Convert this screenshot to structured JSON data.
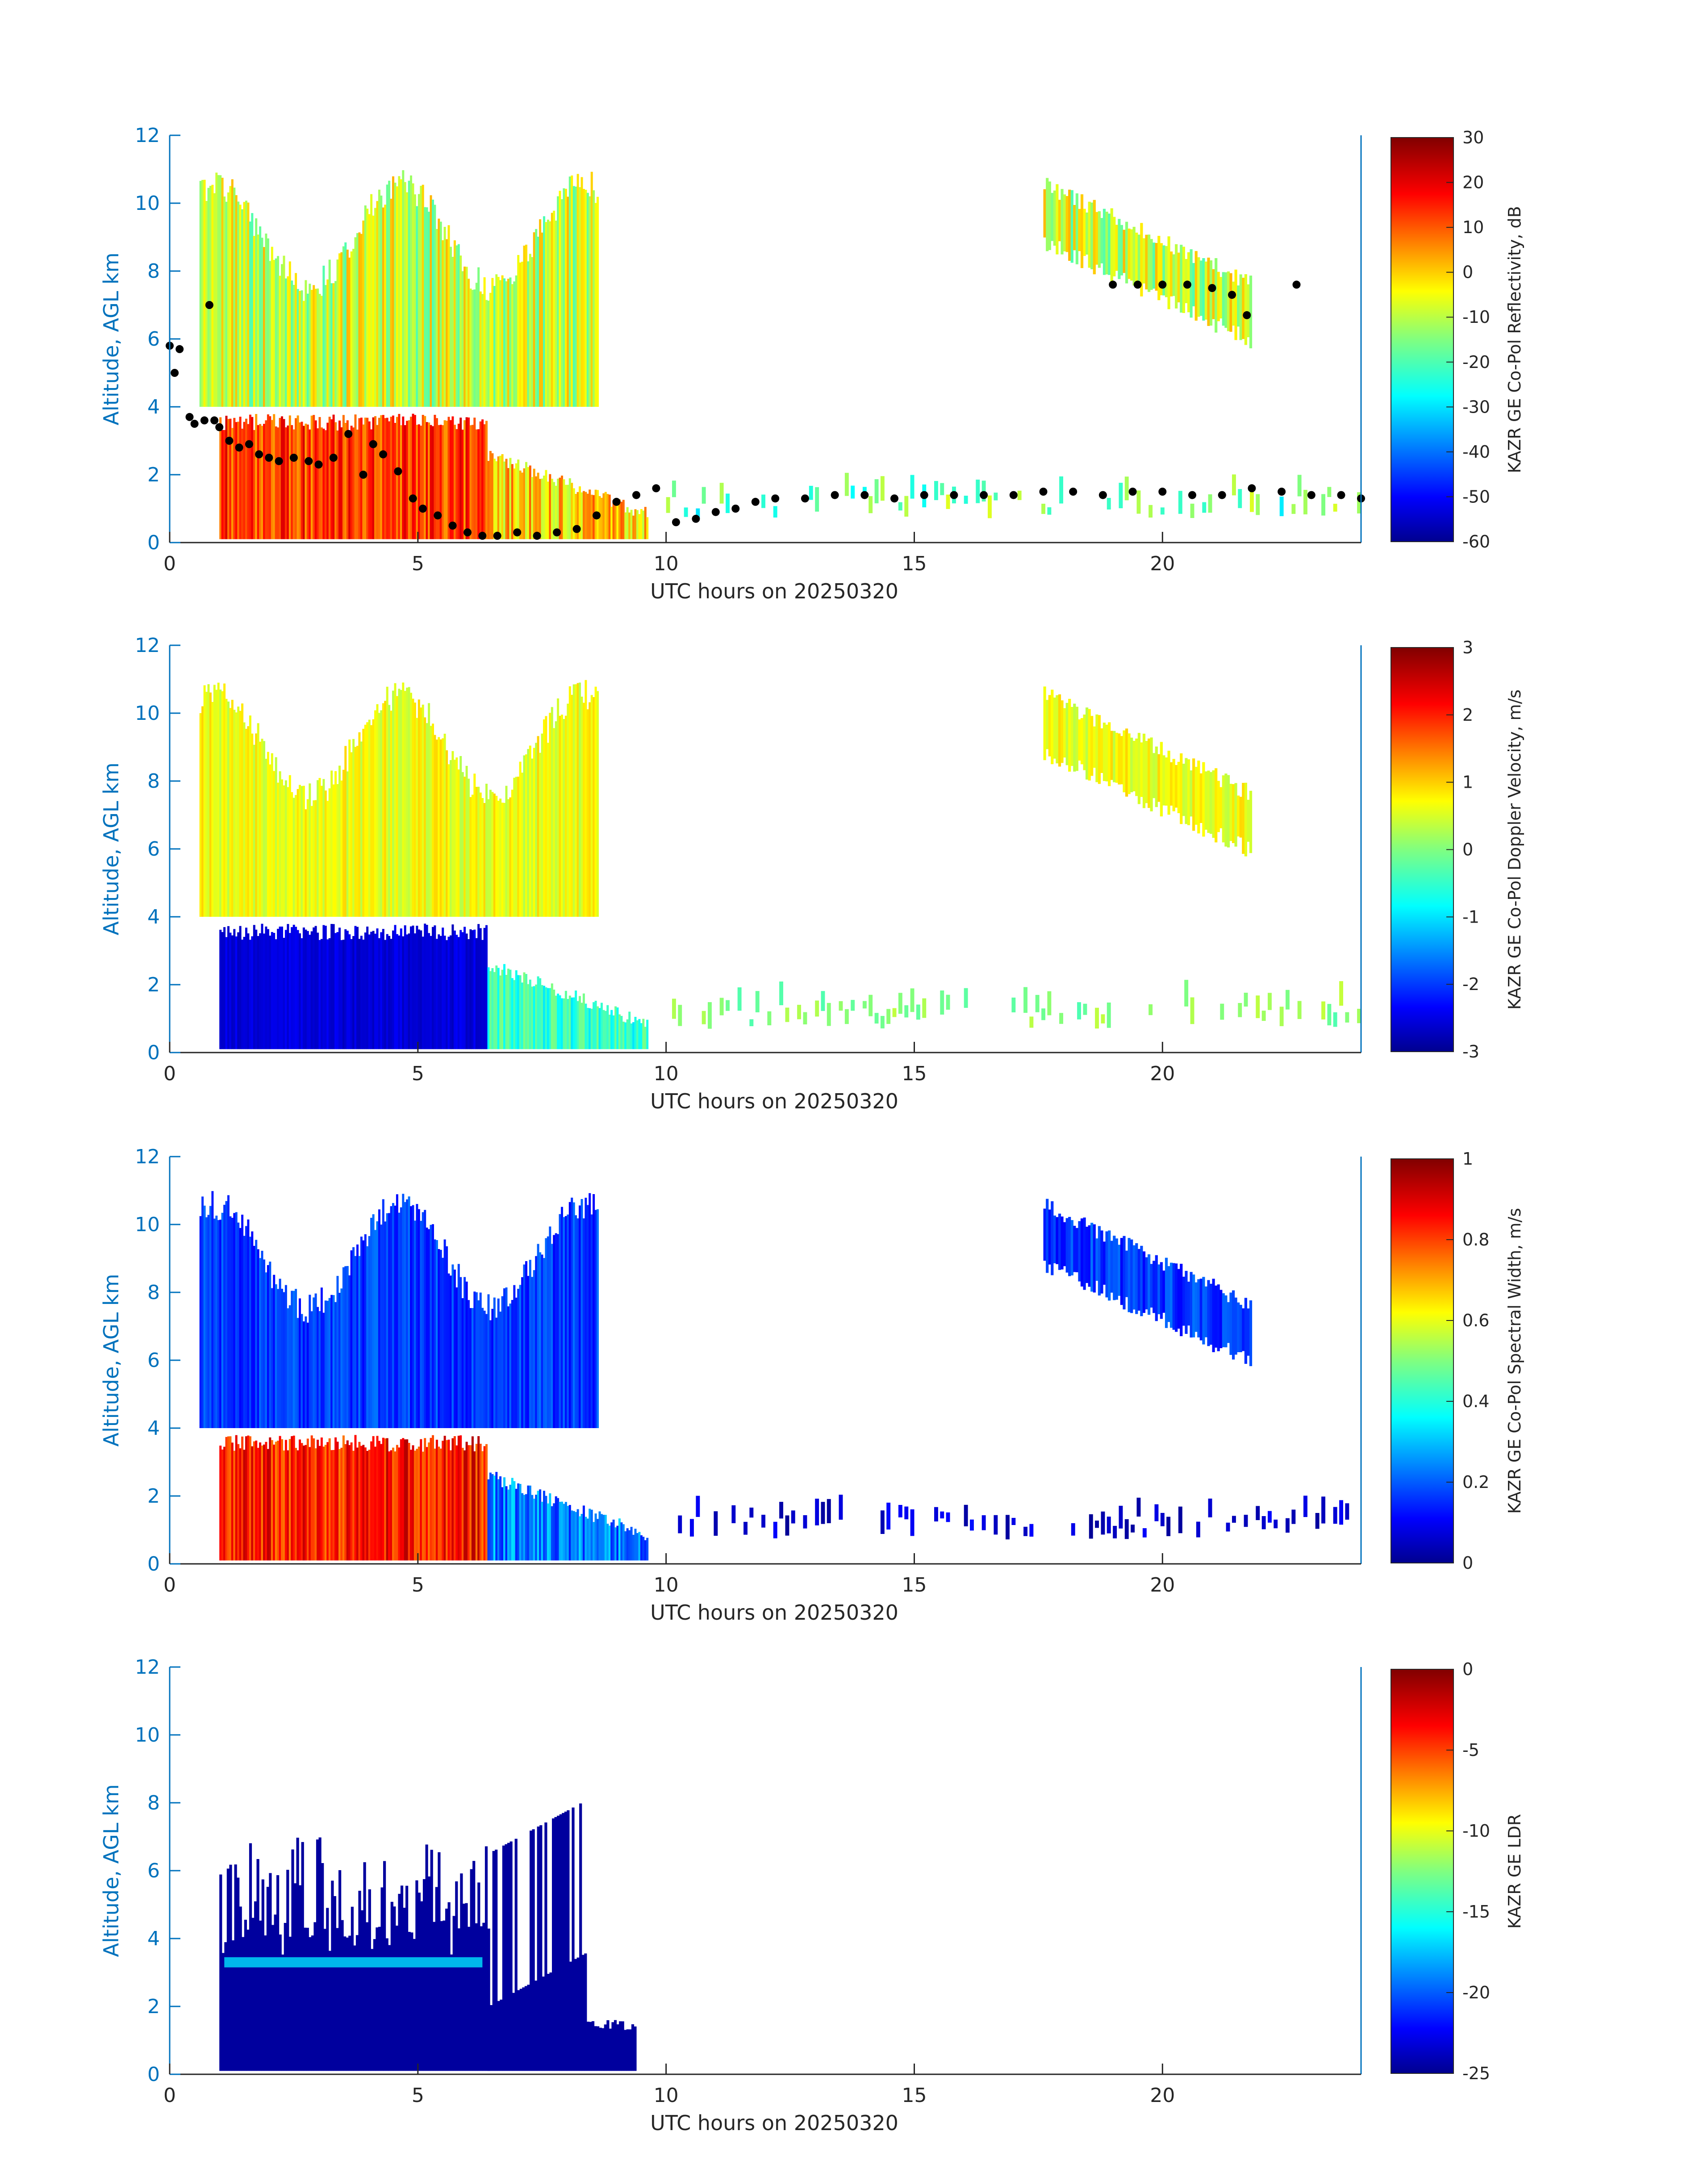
{
  "chart_data": [
    {
      "type": "heatmap",
      "title": "",
      "xlabel": "UTC hours on 20250320",
      "ylabel": "Altitude, AGL km",
      "xlim": [
        0,
        24
      ],
      "ylim": [
        0,
        12
      ],
      "xticks": [
        "0",
        "5",
        "10",
        "15",
        "20"
      ],
      "yticks": [
        "0",
        "2",
        "4",
        "6",
        "8",
        "10",
        "12"
      ],
      "colorbar": {
        "label": "KAZR GE Co-Pol Reflectivity, dB",
        "range": [
          -60,
          30
        ],
        "ticks": [
          "30",
          "20",
          "10",
          "0",
          "-10",
          "-20",
          "-30",
          "-40",
          "-50",
          "-60"
        ]
      },
      "overlay": {
        "type": "scatter",
        "color": "#000000",
        "x": [
          0.0,
          0.1,
          0.2,
          0.4,
          0.5,
          0.7,
          0.8,
          0.9,
          1.0,
          1.2,
          1.4,
          1.6,
          1.8,
          2.0,
          2.2,
          2.5,
          2.8,
          3.0,
          3.3,
          3.6,
          3.9,
          4.1,
          4.3,
          4.6,
          4.9,
          5.1,
          5.4,
          5.7,
          6.0,
          6.3,
          6.6,
          7.0,
          7.4,
          7.8,
          8.2,
          8.6,
          9.0,
          9.4,
          9.8,
          10.2,
          10.6,
          11.0,
          11.4,
          11.8,
          12.2,
          12.8,
          13.4,
          14.0,
          14.6,
          15.2,
          15.8,
          16.4,
          17.0,
          17.6,
          18.2,
          18.8,
          19.4,
          20.0,
          20.6,
          21.2,
          21.8,
          22.4,
          23.0,
          23.6,
          24.0,
          19.0,
          19.5,
          20.0,
          20.5,
          21.0,
          21.4,
          21.7,
          22.7
        ],
        "y": [
          5.8,
          5.0,
          5.7,
          3.7,
          3.5,
          3.6,
          7.0,
          3.6,
          3.4,
          3.0,
          2.8,
          2.9,
          2.6,
          2.5,
          2.4,
          2.5,
          2.4,
          2.3,
          2.5,
          3.2,
          2.0,
          2.9,
          2.6,
          2.1,
          1.3,
          1.0,
          0.8,
          0.5,
          0.3,
          0.2,
          0.2,
          0.3,
          0.2,
          0.3,
          0.4,
          0.8,
          1.2,
          1.4,
          1.6,
          0.6,
          0.7,
          0.9,
          1.0,
          1.2,
          1.3,
          1.3,
          1.4,
          1.4,
          1.3,
          1.4,
          1.4,
          1.4,
          1.4,
          1.5,
          1.5,
          1.4,
          1.5,
          1.5,
          1.4,
          1.4,
          1.6,
          1.5,
          1.4,
          1.4,
          1.3,
          7.6,
          7.6,
          7.6,
          7.6,
          7.5,
          7.3,
          6.7,
          7.6
        ]
      }
    },
    {
      "type": "heatmap",
      "title": "",
      "xlabel": "UTC hours on 20250320",
      "ylabel": "Altitude, AGL km",
      "xlim": [
        0,
        24
      ],
      "ylim": [
        0,
        12
      ],
      "xticks": [
        "0",
        "5",
        "10",
        "15",
        "20"
      ],
      "yticks": [
        "0",
        "2",
        "4",
        "6",
        "8",
        "10",
        "12"
      ],
      "colorbar": {
        "label": "KAZR GE Co-Pol Doppler Velocity, m/s",
        "range": [
          -3,
          3
        ],
        "ticks": [
          "3",
          "2",
          "1",
          "0",
          "-1",
          "-2",
          "-3"
        ]
      }
    },
    {
      "type": "heatmap",
      "title": "",
      "xlabel": "UTC hours on 20250320",
      "ylabel": "Altitude, AGL km",
      "xlim": [
        0,
        24
      ],
      "ylim": [
        0,
        12
      ],
      "xticks": [
        "0",
        "5",
        "10",
        "15",
        "20"
      ],
      "yticks": [
        "0",
        "2",
        "4",
        "6",
        "8",
        "10",
        "12"
      ],
      "colorbar": {
        "label": "KAZR GE Co-Pol Spectral Width, m/s",
        "range": [
          0,
          1
        ],
        "ticks": [
          "1",
          "0.8",
          "0.6",
          "0.4",
          "0.2",
          "0"
        ]
      }
    },
    {
      "type": "heatmap",
      "title": "",
      "xlabel": "UTC hours on 20250320",
      "ylabel": "Altitude, AGL km",
      "xlim": [
        0,
        24
      ],
      "ylim": [
        0,
        12
      ],
      "xticks": [
        "0",
        "5",
        "10",
        "15",
        "20"
      ],
      "yticks": [
        "0",
        "2",
        "4",
        "6",
        "8",
        "10",
        "12"
      ],
      "colorbar": {
        "label": "KAZR GE LDR",
        "range": [
          -25,
          0
        ],
        "ticks": [
          "0",
          "-5",
          "-10",
          "-15",
          "-20",
          "-25"
        ]
      }
    }
  ],
  "colors": {
    "axis_blue": "#0072bd",
    "text_dark": "#262626",
    "colormap": [
      "#00008f",
      "#0000ff",
      "#0080ff",
      "#00ffff",
      "#80ff80",
      "#ffff00",
      "#ff8000",
      "#ff0000",
      "#800000"
    ]
  }
}
